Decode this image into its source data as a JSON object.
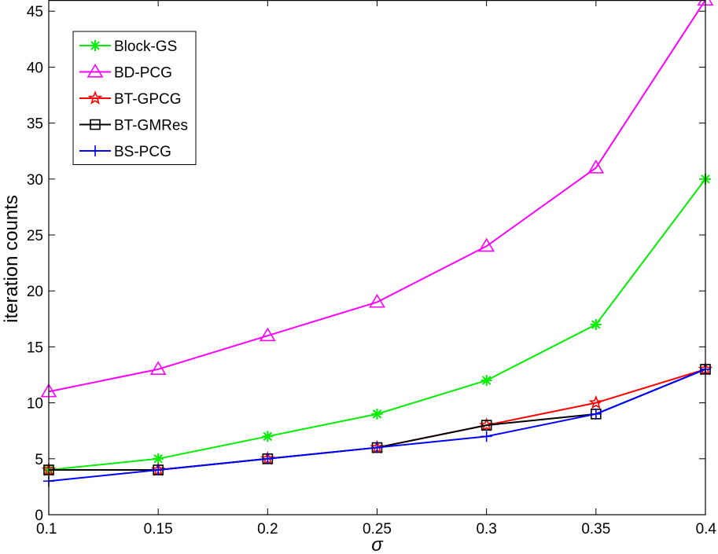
{
  "chart_data": {
    "type": "line",
    "title": "",
    "xlabel": "σ",
    "ylabel": "iteration counts",
    "xlim": [
      0.1,
      0.4
    ],
    "ylim": [
      0,
      46
    ],
    "xticks": [
      "0.1",
      "0.15",
      "0.2",
      "0.25",
      "0.3",
      "0.35",
      "0.4"
    ],
    "yticks": [
      "0",
      "5",
      "10",
      "15",
      "20",
      "25",
      "30",
      "35",
      "40",
      "45"
    ],
    "x": [
      0.1,
      0.15,
      0.2,
      0.25,
      0.3,
      0.35,
      0.4
    ],
    "grid": false,
    "legend_position": "top-left",
    "series": [
      {
        "name": "Block-GS",
        "color": "#00ee00",
        "marker": "asterisk",
        "values": [
          4,
          5,
          7,
          9,
          12,
          17,
          30
        ]
      },
      {
        "name": "BD-PCG",
        "color": "#ff00ff",
        "marker": "triangle",
        "values": [
          11,
          13,
          16,
          19,
          24,
          31,
          46
        ]
      },
      {
        "name": "BT-GPCG",
        "color": "#ff0000",
        "marker": "star",
        "values": [
          4,
          4,
          5,
          6,
          8,
          10,
          13
        ]
      },
      {
        "name": "BT-GMRes",
        "color": "#000000",
        "marker": "square",
        "values": [
          4,
          4,
          5,
          6,
          8,
          9,
          13
        ]
      },
      {
        "name": "BS-PCG",
        "color": "#0000ff",
        "marker": "plus",
        "values": [
          3,
          4,
          5,
          6,
          7,
          9,
          13
        ]
      }
    ]
  }
}
